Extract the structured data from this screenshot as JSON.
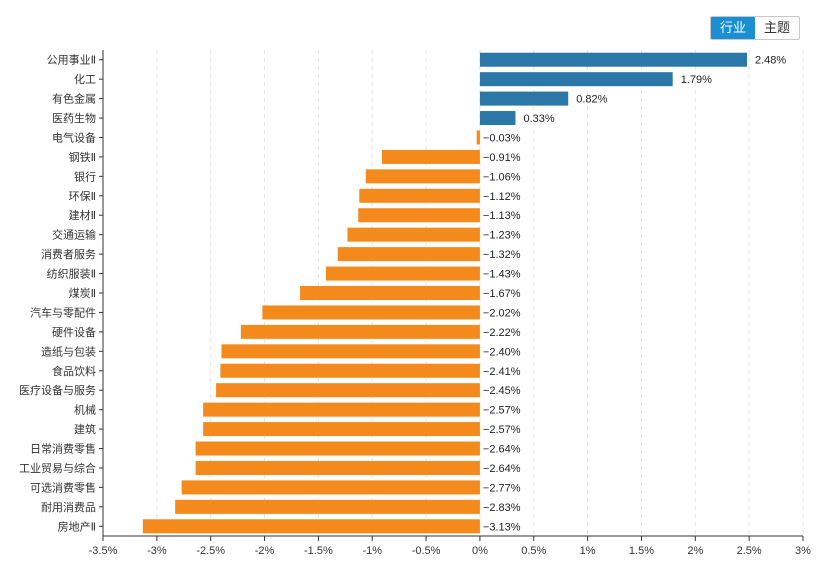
{
  "toggle": {
    "options": [
      "行业",
      "主题"
    ],
    "active": 0
  },
  "colors": {
    "positive": "#2a77a8",
    "negative": "#f48a1c",
    "toggle_active": "#1a8fd1"
  },
  "chart_data": {
    "type": "bar",
    "orientation": "horizontal",
    "title": "",
    "xlabel": "",
    "ylabel": "",
    "xlim": [
      -3.5,
      3
    ],
    "xticks": [
      -3.5,
      -3,
      -2.5,
      -2,
      -1.5,
      -1,
      -0.5,
      0,
      0.5,
      1,
      1.5,
      2,
      2.5,
      3
    ],
    "xtick_labels": [
      "-3.5%",
      "-3%",
      "-2.5%",
      "-2%",
      "-1.5%",
      "-1%",
      "-0.5%",
      "0%",
      "0.5%",
      "1%",
      "1.5%",
      "2%",
      "2.5%",
      "3%"
    ],
    "grid": true,
    "categories": [
      "公用事业Ⅱ",
      "化工",
      "有色金属",
      "医药生物",
      "电气设备",
      "钢铁Ⅱ",
      "银行",
      "环保Ⅱ",
      "建材Ⅱ",
      "交通运输",
      "消费者服务",
      "纺织服装Ⅱ",
      "煤炭Ⅱ",
      "汽车与零配件",
      "硬件设备",
      "造纸与包装",
      "食品饮料",
      "医疗设备与服务",
      "机械",
      "建筑",
      "日常消费零售",
      "工业贸易与综合",
      "可选消费零售",
      "耐用消费品",
      "房地产Ⅱ"
    ],
    "values": [
      2.48,
      1.79,
      0.82,
      0.33,
      -0.03,
      -0.91,
      -1.06,
      -1.12,
      -1.13,
      -1.23,
      -1.32,
      -1.43,
      -1.67,
      -2.02,
      -2.22,
      -2.4,
      -2.41,
      -2.45,
      -2.57,
      -2.57,
      -2.64,
      -2.64,
      -2.77,
      -2.83,
      -3.13
    ],
    "value_labels": [
      "2.48%",
      "1.79%",
      "0.82%",
      "0.33%",
      "−0.03%",
      "−0.91%",
      "−1.06%",
      "−1.12%",
      "−1.13%",
      "−1.23%",
      "−1.32%",
      "−1.43%",
      "−1.67%",
      "−2.02%",
      "−2.22%",
      "−2.40%",
      "−2.41%",
      "−2.45%",
      "−2.57%",
      "−2.57%",
      "−2.64%",
      "−2.64%",
      "−2.77%",
      "−2.83%",
      "−3.13%"
    ]
  }
}
